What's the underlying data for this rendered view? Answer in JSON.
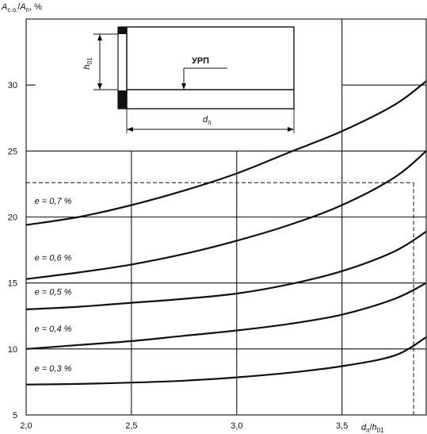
{
  "chart_data": {
    "type": "line",
    "ylabel": "A_с.о./A_п, %",
    "xlabel": "d_п/h_01",
    "ylabel_parts": {
      "main": "A",
      "sub1": "с.о.",
      "slash": "/",
      "main2": "A",
      "sub2": "п",
      "unit": ", %"
    },
    "xlabel_parts": {
      "main": "d",
      "sub1": "п",
      "slash": "/",
      "main2": "h",
      "sub2": "01"
    },
    "xlim": [
      2.0,
      3.9
    ],
    "ylim": [
      5,
      35
    ],
    "x_ticks": [
      {
        "value": 2.0,
        "label": "2,0"
      },
      {
        "value": 2.5,
        "label": "2,5"
      },
      {
        "value": 3.0,
        "label": "3,0"
      },
      {
        "value": 3.5,
        "label": "3,5"
      }
    ],
    "y_ticks": [
      {
        "value": 5,
        "label": "5"
      },
      {
        "value": 10,
        "label": "10"
      },
      {
        "value": 15,
        "label": "15"
      },
      {
        "value": 20,
        "label": "20"
      },
      {
        "value": 25,
        "label": "25"
      },
      {
        "value": 30,
        "label": "30"
      }
    ],
    "grid": true,
    "series": [
      {
        "name": "e = 0,7 %",
        "x": [
          2.0,
          2.25,
          2.5,
          2.75,
          3.0,
          3.25,
          3.5,
          3.75,
          3.9
        ],
        "y": [
          19.4,
          20.0,
          20.9,
          22.0,
          23.3,
          24.9,
          26.5,
          28.5,
          30.3
        ]
      },
      {
        "name": "e = 0,6 %",
        "x": [
          2.0,
          2.25,
          2.5,
          2.75,
          3.0,
          3.25,
          3.5,
          3.75,
          3.9
        ],
        "y": [
          15.3,
          15.8,
          16.4,
          17.2,
          18.2,
          19.4,
          20.9,
          23.0,
          25.0
        ]
      },
      {
        "name": "e = 0,5 %",
        "x": [
          2.0,
          2.25,
          2.5,
          2.75,
          3.0,
          3.25,
          3.5,
          3.75,
          3.9
        ],
        "y": [
          13.0,
          13.2,
          13.5,
          13.8,
          14.2,
          14.9,
          15.9,
          17.4,
          18.9
        ]
      },
      {
        "name": "e = 0,4 %",
        "x": [
          2.0,
          2.25,
          2.5,
          2.75,
          3.0,
          3.25,
          3.5,
          3.75,
          3.9
        ],
        "y": [
          10.0,
          10.3,
          10.6,
          11.0,
          11.4,
          11.9,
          12.6,
          13.8,
          15.0
        ]
      },
      {
        "name": "e = 0,3 %",
        "x": [
          2.0,
          2.25,
          2.5,
          2.75,
          3.0,
          3.25,
          3.5,
          3.75,
          3.9
        ],
        "y": [
          7.3,
          7.35,
          7.45,
          7.6,
          7.85,
          8.2,
          8.7,
          9.5,
          10.9
        ]
      }
    ],
    "series_labels": [
      {
        "text": "e = 0,7 %",
        "at": [
          2.04,
          21.0
        ]
      },
      {
        "text": "e = 0,6 %",
        "at": [
          2.04,
          16.7
        ]
      },
      {
        "text": "e = 0,5 %",
        "at": [
          2.04,
          14.1
        ]
      },
      {
        "text": "e = 0,4 %",
        "at": [
          2.04,
          11.3
        ]
      },
      {
        "text": "e = 0,3 %",
        "at": [
          2.04,
          8.3
        ]
      }
    ],
    "reference_line": {
      "x": 3.84,
      "y": 22.6
    },
    "inset": {
      "type": "diagram",
      "labels": {
        "h": "h",
        "h_sub": "01",
        "d": "d",
        "d_sub": "п",
        "urp": "УРП"
      }
    }
  }
}
